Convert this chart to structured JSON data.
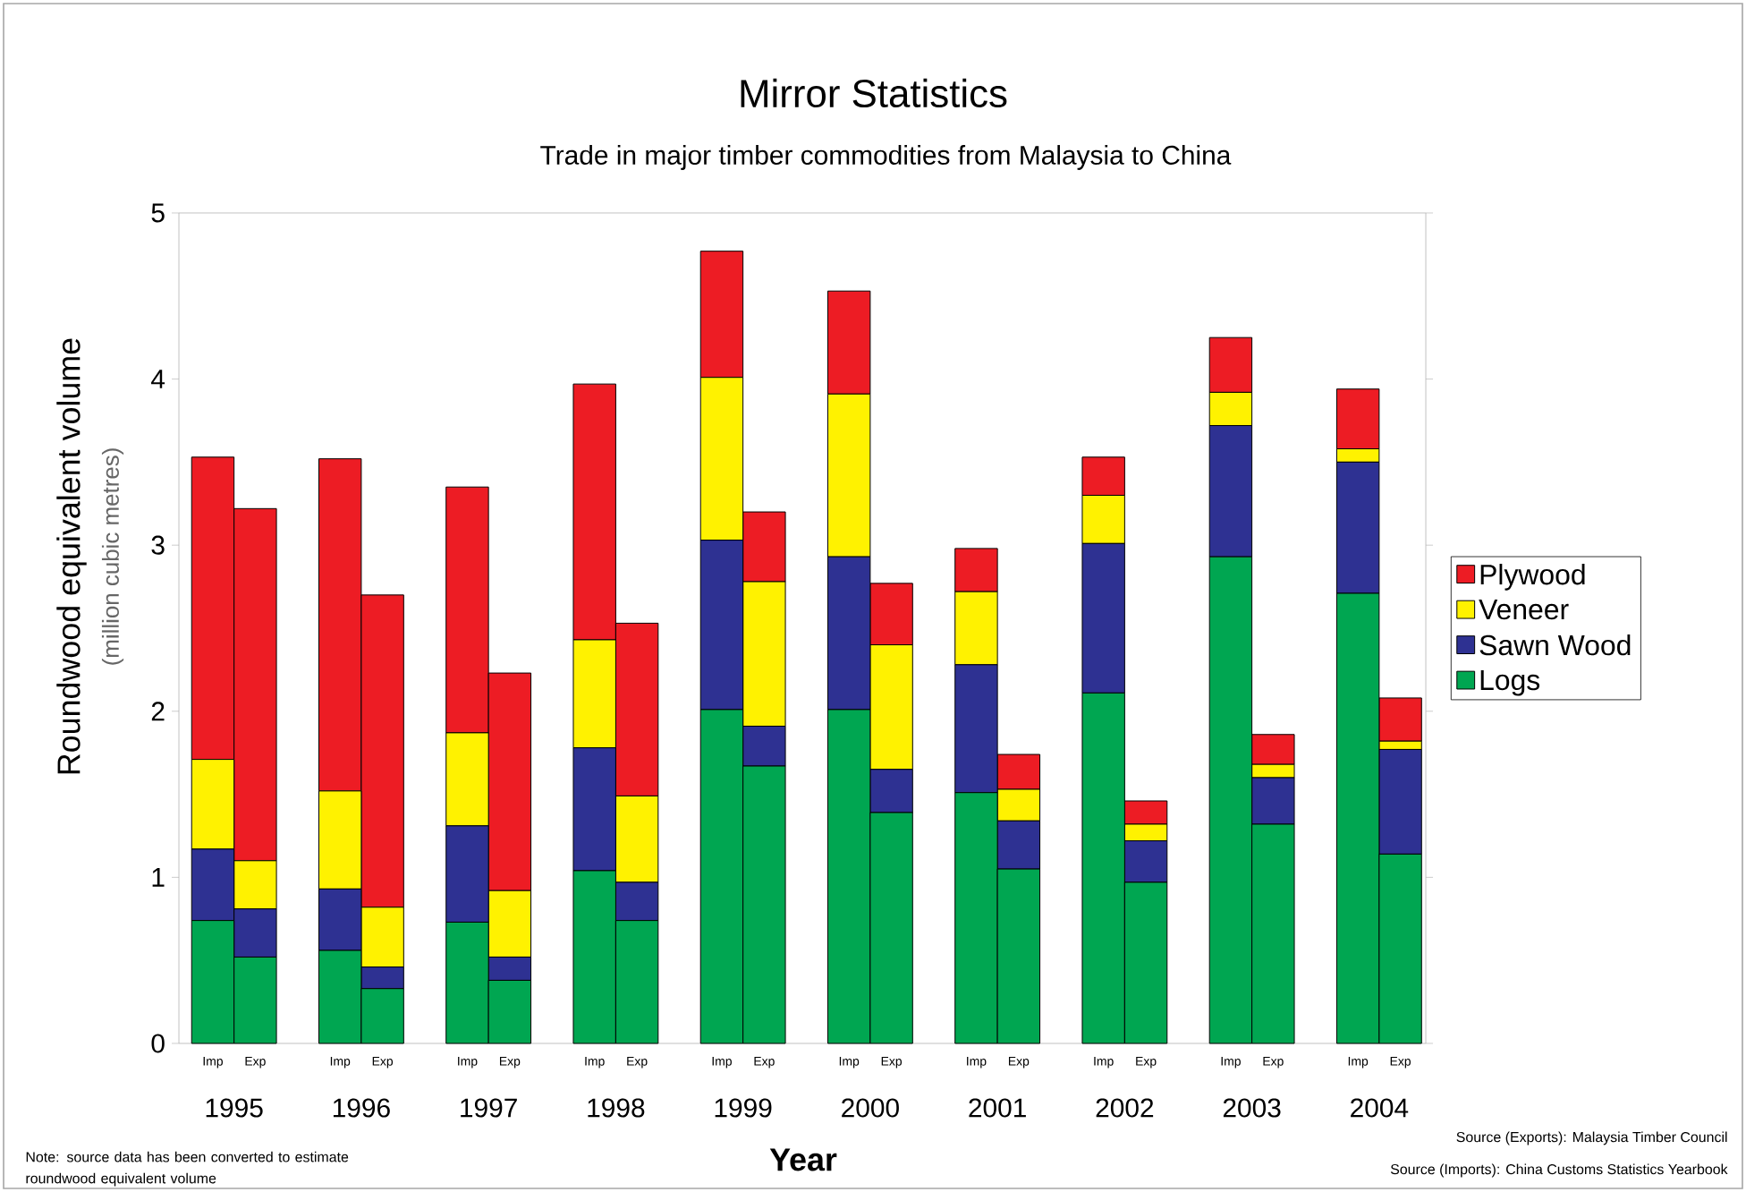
{
  "chart_data": {
    "type": "bar",
    "stacked": true,
    "title": "Mirror Statistics",
    "subtitle": "Trade in major timber commodities from Malaysia to China",
    "xlabel": "Year",
    "ylabel": "Roundwood equivalent volume",
    "categories": [
      "Imp",
      "Exp",
      "Imp",
      "Exp",
      "Imp",
      "Exp",
      "Imp",
      "Exp",
      "Imp",
      "Exp",
      "Imp",
      "Exp",
      "Imp",
      "Exp",
      "Imp",
      "Exp",
      "Imp",
      "Exp",
      "Imp",
      "Exp"
    ],
    "series": [
      {
        "name": "Logs",
        "color": "#00a651",
        "values": [
          0.74,
          0.52,
          0.56,
          0.33,
          0.73,
          0.38,
          1.04,
          0.74,
          2.01,
          1.67,
          2.01,
          1.39,
          1.51,
          1.05,
          2.11,
          0.97,
          2.93,
          1.32,
          2.71,
          1.14
        ]
      },
      {
        "name": "Sawn Wood",
        "color": "#2e3192",
        "values": [
          0.43,
          0.29,
          0.37,
          0.13,
          0.58,
          0.14,
          0.74,
          0.23,
          1.02,
          0.24,
          0.92,
          0.26,
          0.77,
          0.29,
          0.9,
          0.25,
          0.79,
          0.28,
          0.79,
          0.63
        ]
      },
      {
        "name": "Veneer",
        "color": "#fff200",
        "values": [
          0.54,
          0.29,
          0.59,
          0.36,
          0.56,
          0.4,
          0.65,
          0.52,
          0.98,
          0.87,
          0.98,
          0.75,
          0.44,
          0.19,
          0.29,
          0.1,
          0.2,
          0.08,
          0.08,
          0.05
        ]
      },
      {
        "name": "Plywood",
        "color": "#ed1c24",
        "values": [
          1.82,
          2.12,
          2.0,
          1.88,
          1.48,
          1.31,
          1.54,
          1.04,
          0.76,
          0.42,
          0.62,
          0.37,
          0.26,
          0.21,
          0.23,
          0.14,
          0.33,
          0.18,
          0.36,
          0.26
        ]
      }
    ],
    "ylim": [
      0,
      5
    ],
    "yticks": [
      0,
      1,
      2,
      3,
      4,
      5
    ],
    "grid": false,
    "legend": "right",
    "annotations": [
      "1995",
      "1996",
      "1997",
      "1998",
      "1999",
      "2000",
      "2001",
      "2002",
      "2003",
      "2004",
      "(million cubic metres)",
      "Note: source data has been converted to estimate roundwood equivalent volume",
      "Source (Exports): Malaysia Timber Council",
      "Source (Imports): China Customs Statistics Yearbook"
    ]
  }
}
